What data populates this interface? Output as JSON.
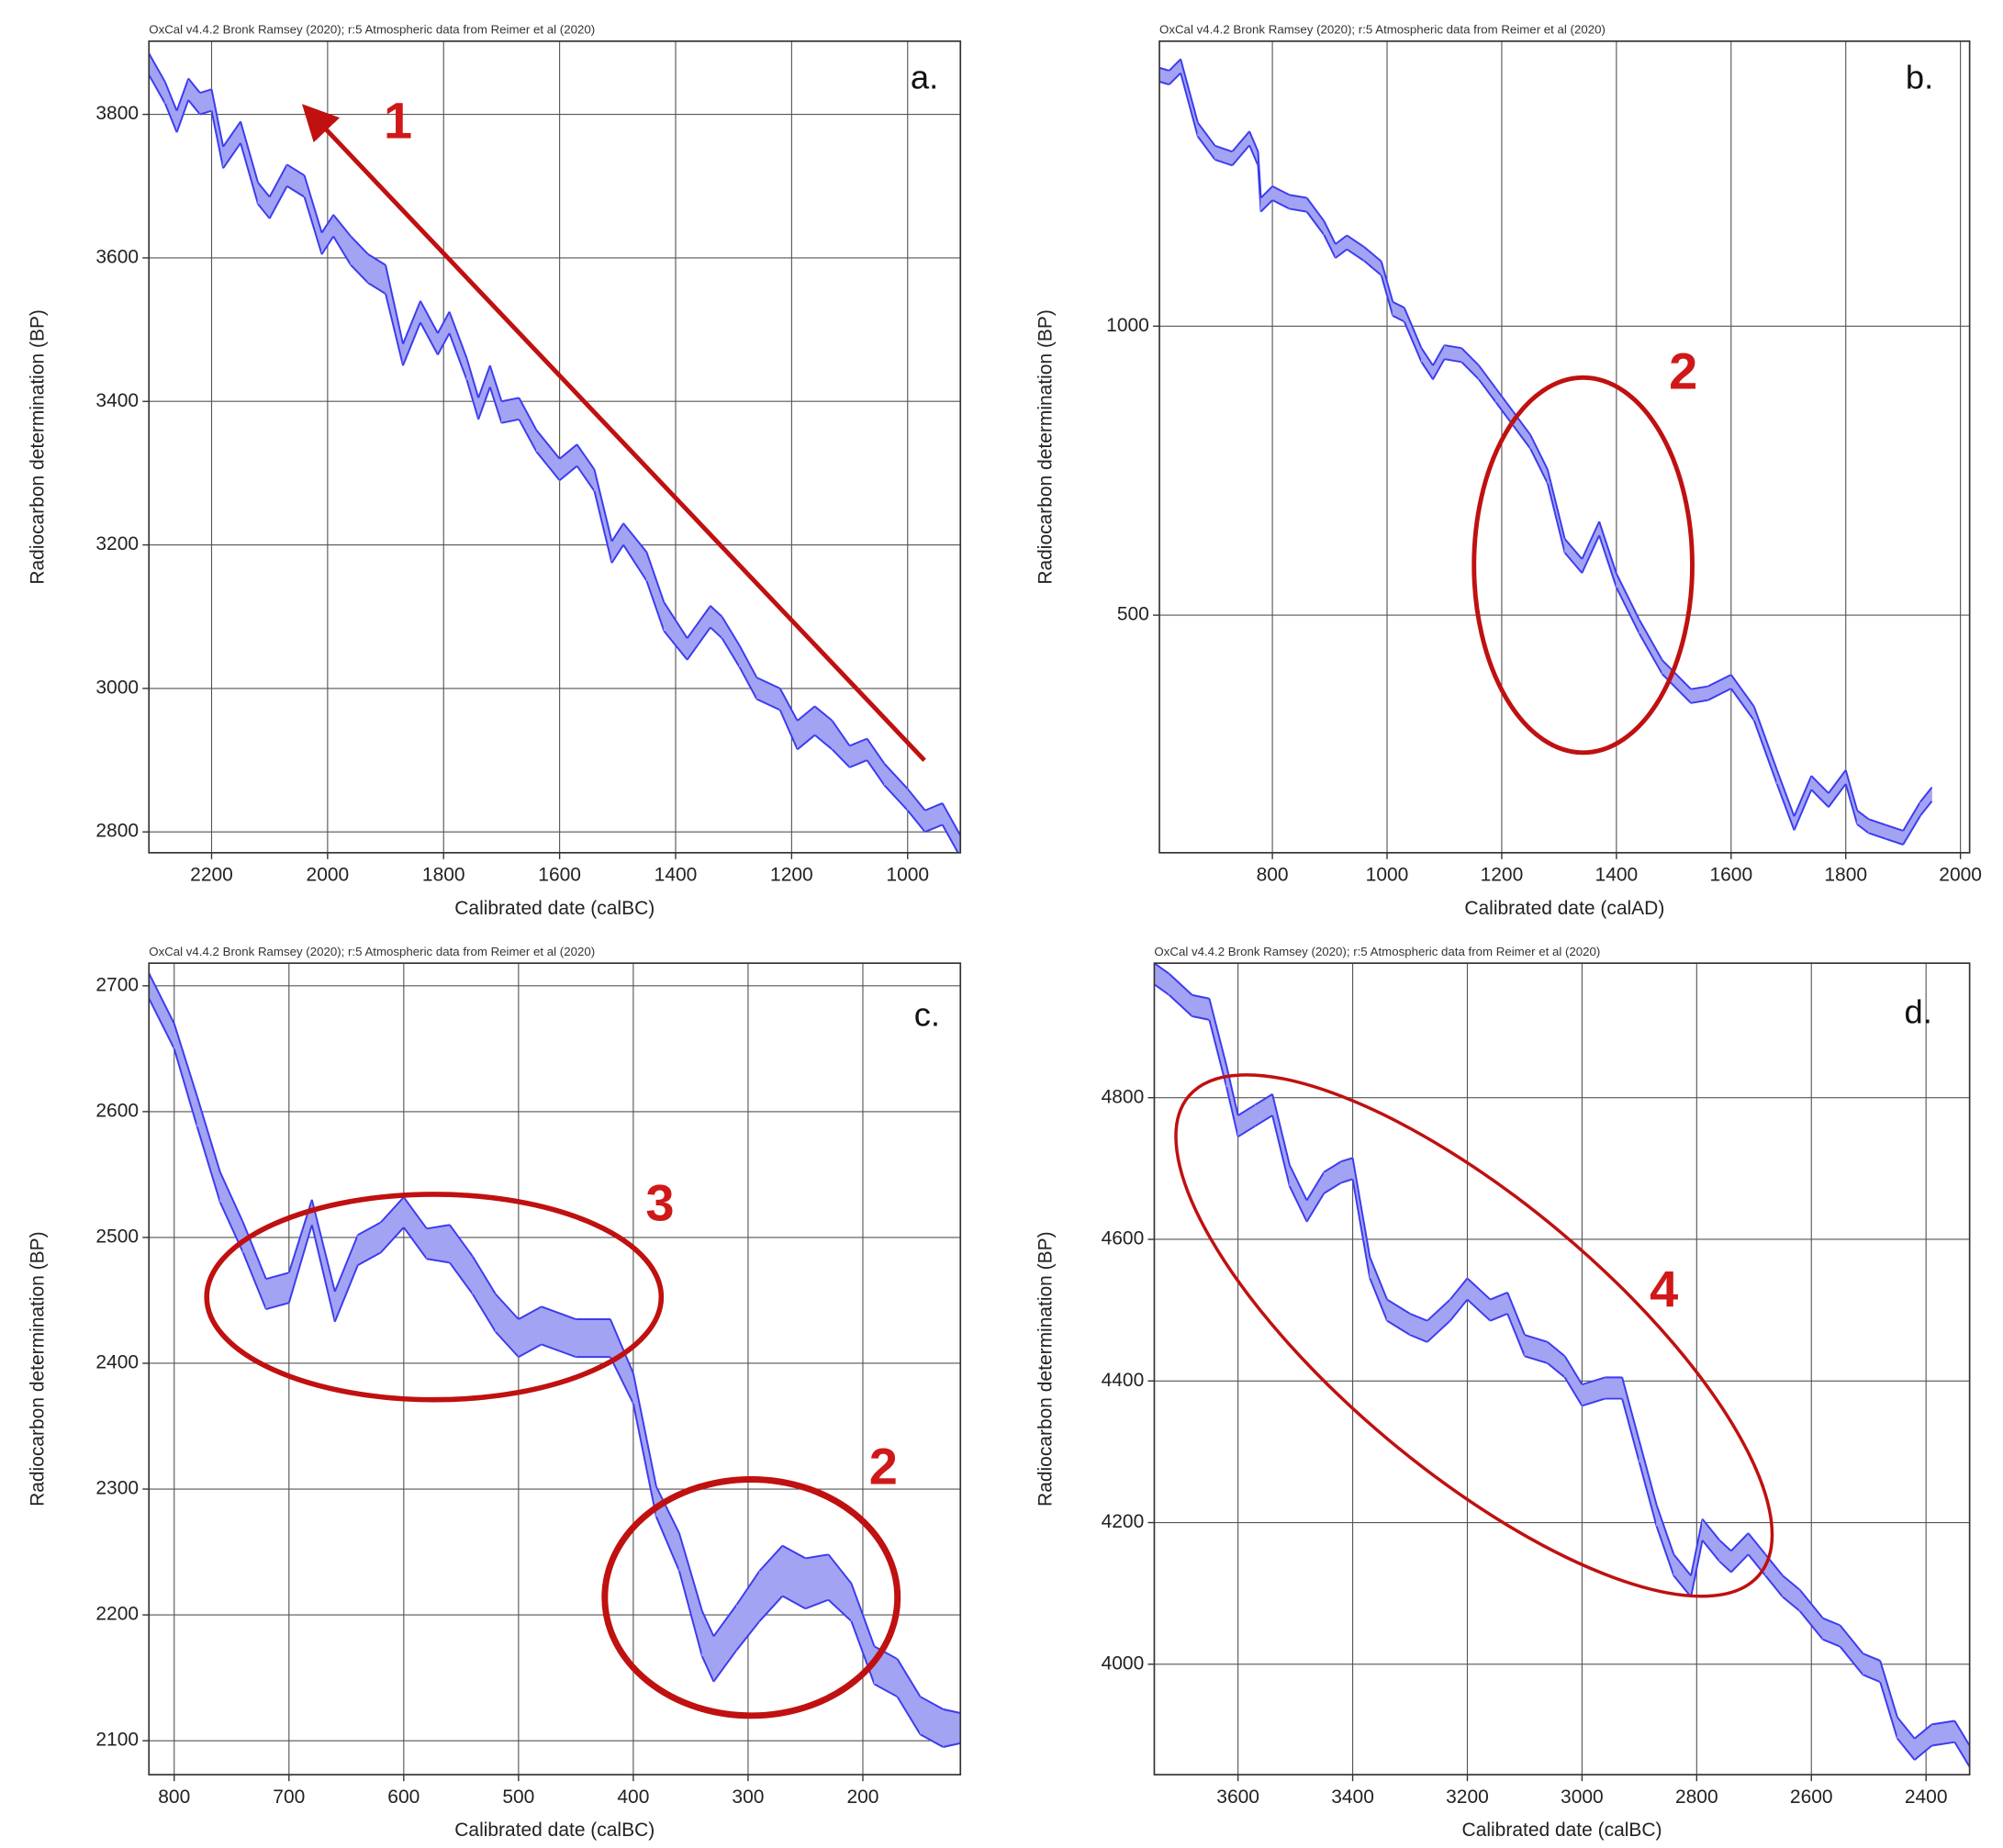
{
  "chart_data": [
    {
      "type": "band",
      "subtitle": "OxCal v4.4.2 Bronk Ramsey (2020); r:5 Atmospheric data from Reimer et al (2020)",
      "panel_label": "a.",
      "annotations": [
        "1"
      ],
      "x_label": "Calibrated date (calBC)",
      "y_label": "Radiocarbon determination (BP)",
      "color": "#3b3bf0",
      "fill": "#a3a3f3",
      "xlim": [
        2308,
        909
      ],
      "xticks": [
        2200,
        2000,
        1800,
        1600,
        1400,
        1200,
        1000
      ],
      "ylim": [
        2771,
        3902
      ],
      "yticks": [
        2800,
        3000,
        3200,
        3400,
        3600,
        3800
      ],
      "grid": true,
      "x": [
        2308,
        2280,
        2260,
        2240,
        2220,
        2200,
        2180,
        2150,
        2120,
        2100,
        2070,
        2040,
        2010,
        1990,
        1960,
        1930,
        1900,
        1870,
        1840,
        1810,
        1790,
        1760,
        1740,
        1720,
        1700,
        1670,
        1640,
        1600,
        1570,
        1540,
        1510,
        1490,
        1450,
        1420,
        1380,
        1340,
        1320,
        1290,
        1260,
        1220,
        1190,
        1160,
        1130,
        1100,
        1070,
        1040,
        1000,
        970,
        940,
        909
      ],
      "values": [
        3870,
        3830,
        3790,
        3835,
        3815,
        3820,
        3740,
        3775,
        3690,
        3670,
        3715,
        3700,
        3620,
        3645,
        3610,
        3585,
        3570,
        3465,
        3525,
        3480,
        3510,
        3445,
        3390,
        3435,
        3385,
        3390,
        3345,
        3305,
        3325,
        3290,
        3190,
        3215,
        3170,
        3100,
        3055,
        3100,
        3085,
        3045,
        3000,
        2985,
        2935,
        2955,
        2935,
        2905,
        2915,
        2880,
        2845,
        2815,
        2825,
        2780
      ],
      "errors": [
        15,
        15,
        15,
        15,
        15,
        15,
        15,
        15,
        15,
        15,
        15,
        15,
        15,
        15,
        20,
        20,
        20,
        15,
        15,
        15,
        15,
        15,
        15,
        15,
        15,
        15,
        15,
        15,
        15,
        15,
        15,
        15,
        20,
        20,
        15,
        15,
        15,
        15,
        15,
        15,
        20,
        20,
        20,
        15,
        15,
        15,
        15,
        15,
        15,
        15
      ]
    },
    {
      "type": "band",
      "subtitle": "OxCal v4.4.2 Bronk Ramsey (2020); r:5 Atmospheric data from Reimer et al (2020)",
      "panel_label": "b.",
      "annotations": [
        "2"
      ],
      "x_label": "Calibrated date (calAD)",
      "y_label": "Radiocarbon determination (BP)",
      "color": "#3b3bf0",
      "fill": "#a3a3f3",
      "xlim": [
        603,
        2016
      ],
      "xticks": [
        800,
        1000,
        1200,
        1400,
        1600,
        1800,
        2000
      ],
      "ylim": [
        89,
        1493
      ],
      "yticks": [
        500,
        1000
      ],
      "grid": true,
      "x": [
        603,
        620,
        640,
        670,
        700,
        730,
        760,
        775,
        780,
        800,
        830,
        860,
        890,
        910,
        930,
        960,
        990,
        1010,
        1030,
        1060,
        1080,
        1100,
        1130,
        1160,
        1190,
        1220,
        1250,
        1280,
        1310,
        1340,
        1370,
        1400,
        1440,
        1480,
        1530,
        1560,
        1600,
        1640,
        1680,
        1710,
        1740,
        1770,
        1800,
        1820,
        1840,
        1870,
        1900,
        1930,
        1950
      ],
      "values": [
        1435,
        1430,
        1450,
        1340,
        1300,
        1290,
        1325,
        1290,
        1210,
        1230,
        1215,
        1210,
        1170,
        1130,
        1145,
        1125,
        1100,
        1030,
        1020,
        950,
        920,
        955,
        950,
        920,
        880,
        840,
        800,
        740,
        620,
        585,
        650,
        560,
        480,
        410,
        360,
        365,
        385,
        330,
        220,
        140,
        210,
        180,
        220,
        150,
        135,
        125,
        115,
        165,
        190
      ],
      "errors": [
        12,
        12,
        12,
        12,
        12,
        12,
        12,
        12,
        12,
        12,
        12,
        12,
        12,
        12,
        12,
        12,
        12,
        12,
        12,
        12,
        12,
        12,
        12,
        12,
        12,
        12,
        12,
        12,
        12,
        12,
        12,
        12,
        12,
        12,
        12,
        12,
        12,
        12,
        12,
        12,
        12,
        12,
        12,
        12,
        12,
        12,
        12,
        12,
        12
      ]
    },
    {
      "type": "band",
      "subtitle": "OxCal v4.4.2 Bronk Ramsey (2020); r:5 Atmospheric data from Reimer et al (2020)",
      "panel_label": "c.",
      "annotations": [
        "3",
        "2"
      ],
      "x_label": "Calibrated date (calBC)",
      "y_label": "Radiocarbon determination (BP)",
      "color": "#3b3bf0",
      "fill": "#a3a3f3",
      "xlim": [
        822,
        115
      ],
      "xticks": [
        800,
        700,
        600,
        500,
        400,
        300,
        200
      ],
      "ylim": [
        2073,
        2718
      ],
      "yticks": [
        2100,
        2200,
        2300,
        2400,
        2500,
        2600,
        2700
      ],
      "grid": true,
      "x": [
        822,
        800,
        780,
        760,
        740,
        720,
        700,
        680,
        660,
        640,
        620,
        600,
        580,
        560,
        540,
        520,
        500,
        480,
        450,
        420,
        400,
        380,
        360,
        340,
        330,
        310,
        290,
        270,
        250,
        230,
        210,
        190,
        170,
        150,
        130,
        115
      ],
      "values": [
        2700,
        2660,
        2600,
        2540,
        2500,
        2455,
        2460,
        2520,
        2445,
        2490,
        2500,
        2520,
        2495,
        2495,
        2470,
        2440,
        2420,
        2430,
        2420,
        2420,
        2380,
        2290,
        2250,
        2185,
        2165,
        2190,
        2215,
        2235,
        2225,
        2230,
        2210,
        2160,
        2150,
        2120,
        2110,
        2110
      ],
      "errors": [
        10,
        10,
        12,
        12,
        12,
        12,
        12,
        10,
        12,
        12,
        12,
        12,
        12,
        15,
        15,
        15,
        15,
        15,
        15,
        15,
        12,
        12,
        15,
        18,
        18,
        18,
        20,
        20,
        20,
        18,
        15,
        15,
        15,
        15,
        15,
        12
      ]
    },
    {
      "type": "band",
      "subtitle": "OxCal v4.4.2 Bronk Ramsey (2020); r:5 Atmospheric data from Reimer et al (2020)",
      "panel_label": "d.",
      "annotations": [
        "4"
      ],
      "x_label": "Calibrated date (calBC)",
      "y_label": "Radiocarbon determination (BP)",
      "color": "#3b3bf0",
      "fill": "#a3a3f3",
      "xlim": [
        3746,
        2324
      ],
      "xticks": [
        3600,
        3400,
        3200,
        3000,
        2800,
        2600,
        2400
      ],
      "ylim": [
        3844,
        4990
      ],
      "yticks": [
        4000,
        4200,
        4400,
        4600,
        4800
      ],
      "grid": true,
      "x": [
        3746,
        3720,
        3680,
        3650,
        3620,
        3600,
        3570,
        3540,
        3510,
        3480,
        3450,
        3420,
        3400,
        3370,
        3340,
        3300,
        3270,
        3230,
        3200,
        3160,
        3130,
        3100,
        3060,
        3030,
        3000,
        2960,
        2930,
        2900,
        2870,
        2840,
        2810,
        2790,
        2760,
        2740,
        2710,
        2680,
        2650,
        2620,
        2580,
        2550,
        2510,
        2480,
        2450,
        2420,
        2390,
        2350,
        2324
      ],
      "values": [
        4975,
        4960,
        4930,
        4925,
        4830,
        4760,
        4775,
        4790,
        4690,
        4640,
        4680,
        4695,
        4700,
        4560,
        4500,
        4480,
        4470,
        4500,
        4530,
        4500,
        4510,
        4450,
        4440,
        4420,
        4380,
        4390,
        4390,
        4300,
        4210,
        4140,
        4110,
        4190,
        4160,
        4145,
        4170,
        4140,
        4110,
        4090,
        4050,
        4040,
        4000,
        3990,
        3910,
        3880,
        3900,
        3905,
        3870
      ],
      "errors": [
        15,
        15,
        15,
        15,
        15,
        15,
        15,
        15,
        15,
        15,
        15,
        15,
        15,
        15,
        15,
        15,
        15,
        15,
        15,
        15,
        15,
        15,
        15,
        15,
        15,
        15,
        15,
        15,
        15,
        15,
        15,
        15,
        15,
        15,
        15,
        15,
        15,
        15,
        15,
        15,
        15,
        15,
        15,
        15,
        15,
        15,
        15
      ]
    }
  ]
}
